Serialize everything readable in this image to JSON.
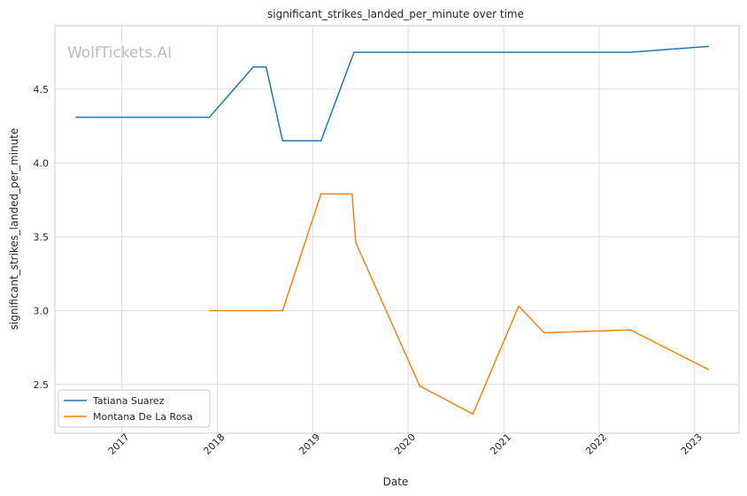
{
  "chart_data": {
    "type": "line",
    "title": "significant_strikes_landed_per_minute over time",
    "xlabel": "Date",
    "ylabel": "significant_strikes_landed_per_minute",
    "watermark": "WolfTickets.AI",
    "grid": true,
    "legend_position": "lower-left",
    "x_ticks": [
      "2017",
      "2018",
      "2019",
      "2020",
      "2021",
      "2022",
      "2023"
    ],
    "y_ticks": [
      "2.5",
      "3.0",
      "3.5",
      "4.0",
      "4.5"
    ],
    "xlim": [
      "2016-04-20",
      "2023-06-20"
    ],
    "ylim": [
      2.17,
      4.93
    ],
    "series": [
      {
        "name": "Tatiana Suarez",
        "color": "#1f77b4",
        "points": [
          {
            "x": "2016-07-08",
            "y": 4.31
          },
          {
            "x": "2017-12-02",
            "y": 4.31
          },
          {
            "x": "2018-05-19",
            "y": 4.65
          },
          {
            "x": "2018-07-07",
            "y": 4.65
          },
          {
            "x": "2018-09-08",
            "y": 4.15
          },
          {
            "x": "2019-02-02",
            "y": 4.15
          },
          {
            "x": "2019-06-08",
            "y": 4.75
          },
          {
            "x": "2022-04-30",
            "y": 4.75
          },
          {
            "x": "2023-02-25",
            "y": 4.79
          }
        ]
      },
      {
        "name": "Montana De La Rosa",
        "color": "#ff7f0e",
        "points": [
          {
            "x": "2017-12-02",
            "y": 3.0
          },
          {
            "x": "2018-09-08",
            "y": 3.0
          },
          {
            "x": "2019-02-02",
            "y": 3.79
          },
          {
            "x": "2019-06-01",
            "y": 3.79
          },
          {
            "x": "2019-06-15",
            "y": 3.46
          },
          {
            "x": "2020-02-15",
            "y": 2.49
          },
          {
            "x": "2020-09-05",
            "y": 2.3
          },
          {
            "x": "2021-02-27",
            "y": 3.03
          },
          {
            "x": "2021-06-05",
            "y": 2.85
          },
          {
            "x": "2022-04-30",
            "y": 2.87
          },
          {
            "x": "2023-02-25",
            "y": 2.6
          }
        ]
      }
    ]
  }
}
